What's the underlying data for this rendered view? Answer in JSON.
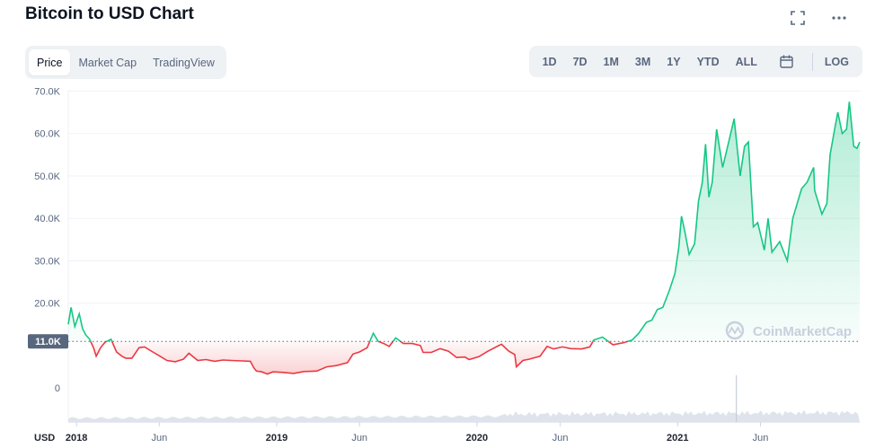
{
  "header": {
    "title": "Bitcoin to USD Chart"
  },
  "icons": {
    "fullscreen": "fullscreen-icon",
    "more": "more-horizontal-icon",
    "calendar": "calendar-icon",
    "logo": "coinmarketcap-logo"
  },
  "view_tabs": [
    {
      "label": "Price",
      "active": true
    },
    {
      "label": "Market Cap",
      "active": false
    },
    {
      "label": "TradingView",
      "active": false
    }
  ],
  "ranges": [
    "1D",
    "7D",
    "1M",
    "3M",
    "1Y",
    "YTD",
    "ALL"
  ],
  "log_label": "LOG",
  "currency_label": "USD",
  "watermark": "CoinMarketCap",
  "colors": {
    "up": "#16c784",
    "down": "#ea3943",
    "baseline_tag": "#58667e"
  },
  "chart_data": {
    "type": "area",
    "baseline": {
      "value": 11000,
      "label": "11.0K"
    },
    "ylim": [
      -8000,
      72000
    ],
    "yticks": [
      {
        "value": 70000,
        "label": "70.0K"
      },
      {
        "value": 60000,
        "label": "60.0K"
      },
      {
        "value": 50000,
        "label": "50.0K"
      },
      {
        "value": 40000,
        "label": "40.0K"
      },
      {
        "value": 30000,
        "label": "30.0K"
      },
      {
        "value": 20000,
        "label": "20.0K"
      },
      {
        "value": 0,
        "label": "0"
      }
    ],
    "xlim": [
      "2017-12-17",
      "2021-11-29"
    ],
    "xticks": [
      {
        "date": "2018-01-01",
        "label": "2018",
        "year": true
      },
      {
        "date": "2018-06-01",
        "label": "Jun",
        "year": false
      },
      {
        "date": "2019-01-01",
        "label": "2019",
        "year": true
      },
      {
        "date": "2019-06-01",
        "label": "Jun",
        "year": false
      },
      {
        "date": "2020-01-01",
        "label": "2020",
        "year": true
      },
      {
        "date": "2020-06-01",
        "label": "Jun",
        "year": false
      },
      {
        "date": "2021-01-01",
        "label": "2021",
        "year": true
      },
      {
        "date": "2021-06-01",
        "label": "Jun",
        "year": false
      }
    ],
    "series": [
      {
        "points": [
          [
            "2017-12-17",
            15000
          ],
          [
            "2017-12-22",
            19000
          ],
          [
            "2017-12-29",
            14500
          ],
          [
            "2018-01-06",
            17500
          ],
          [
            "2018-01-12",
            14000
          ],
          [
            "2018-01-18",
            12500
          ],
          [
            "2018-01-25",
            11500
          ],
          [
            "2018-02-01",
            9500
          ],
          [
            "2018-02-06",
            7500
          ],
          [
            "2018-02-14",
            9500
          ],
          [
            "2018-02-22",
            10800
          ],
          [
            "2018-03-05",
            11500
          ],
          [
            "2018-03-15",
            8500
          ],
          [
            "2018-03-25",
            7500
          ],
          [
            "2018-04-01",
            7000
          ],
          [
            "2018-04-12",
            7000
          ],
          [
            "2018-04-25",
            9500
          ],
          [
            "2018-05-05",
            9700
          ],
          [
            "2018-05-20",
            8500
          ],
          [
            "2018-06-01",
            7600
          ],
          [
            "2018-06-15",
            6500
          ],
          [
            "2018-06-30",
            6200
          ],
          [
            "2018-07-15",
            6800
          ],
          [
            "2018-07-25",
            8200
          ],
          [
            "2018-08-10",
            6500
          ],
          [
            "2018-08-25",
            6700
          ],
          [
            "2018-09-10",
            6300
          ],
          [
            "2018-09-25",
            6600
          ],
          [
            "2018-10-10",
            6500
          ],
          [
            "2018-10-30",
            6400
          ],
          [
            "2018-11-14",
            6300
          ],
          [
            "2018-11-20",
            4800
          ],
          [
            "2018-11-25",
            4000
          ],
          [
            "2018-12-05",
            3800
          ],
          [
            "2018-12-15",
            3300
          ],
          [
            "2018-12-25",
            3800
          ],
          [
            "2019-01-10",
            3700
          ],
          [
            "2019-02-01",
            3450
          ],
          [
            "2019-02-20",
            3900
          ],
          [
            "2019-03-15",
            4000
          ],
          [
            "2019-04-02",
            5000
          ],
          [
            "2019-04-20",
            5300
          ],
          [
            "2019-05-10",
            6000
          ],
          [
            "2019-05-20",
            8000
          ],
          [
            "2019-06-01",
            8500
          ],
          [
            "2019-06-15",
            9500
          ],
          [
            "2019-06-26",
            12900
          ],
          [
            "2019-07-05",
            11000
          ],
          [
            "2019-07-15",
            10500
          ],
          [
            "2019-07-25",
            9800
          ],
          [
            "2019-08-06",
            11800
          ],
          [
            "2019-08-20",
            10500
          ],
          [
            "2019-09-05",
            10500
          ],
          [
            "2019-09-20",
            10000
          ],
          [
            "2019-09-25",
            8400
          ],
          [
            "2019-10-10",
            8400
          ],
          [
            "2019-10-26",
            9300
          ],
          [
            "2019-11-10",
            8700
          ],
          [
            "2019-11-25",
            7200
          ],
          [
            "2019-12-10",
            7300
          ],
          [
            "2019-12-18",
            6700
          ],
          [
            "2020-01-05",
            7400
          ],
          [
            "2020-01-20",
            8600
          ],
          [
            "2020-02-10",
            10000
          ],
          [
            "2020-02-15",
            10300
          ],
          [
            "2020-02-28",
            8700
          ],
          [
            "2020-03-10",
            7900
          ],
          [
            "2020-03-13",
            5000
          ],
          [
            "2020-03-25",
            6500
          ],
          [
            "2020-04-05",
            6800
          ],
          [
            "2020-04-25",
            7500
          ],
          [
            "2020-05-08",
            9800
          ],
          [
            "2020-05-20",
            9200
          ],
          [
            "2020-06-05",
            9700
          ],
          [
            "2020-06-20",
            9300
          ],
          [
            "2020-07-10",
            9200
          ],
          [
            "2020-07-25",
            9700
          ],
          [
            "2020-08-01",
            11300
          ],
          [
            "2020-08-17",
            12000
          ],
          [
            "2020-09-05",
            10200
          ],
          [
            "2020-09-25",
            10700
          ],
          [
            "2020-10-10",
            11300
          ],
          [
            "2020-10-22",
            12900
          ],
          [
            "2020-11-05",
            15500
          ],
          [
            "2020-11-15",
            16000
          ],
          [
            "2020-11-25",
            18500
          ],
          [
            "2020-12-05",
            19000
          ],
          [
            "2020-12-17",
            23000
          ],
          [
            "2020-12-27",
            27000
          ],
          [
            "2021-01-03",
            33000
          ],
          [
            "2021-01-08",
            40500
          ],
          [
            "2021-01-14",
            37000
          ],
          [
            "2021-01-22",
            31500
          ],
          [
            "2021-02-01",
            34000
          ],
          [
            "2021-02-08",
            44000
          ],
          [
            "2021-02-15",
            48500
          ],
          [
            "2021-02-21",
            57500
          ],
          [
            "2021-02-27",
            45000
          ],
          [
            "2021-03-05",
            48500
          ],
          [
            "2021-03-13",
            61000
          ],
          [
            "2021-03-24",
            52000
          ],
          [
            "2021-04-05",
            58500
          ],
          [
            "2021-04-14",
            63500
          ],
          [
            "2021-04-25",
            50000
          ],
          [
            "2021-05-03",
            57000
          ],
          [
            "2021-05-10",
            58000
          ],
          [
            "2021-05-15",
            47000
          ],
          [
            "2021-05-19",
            38000
          ],
          [
            "2021-05-27",
            39000
          ],
          [
            "2021-06-08",
            32500
          ],
          [
            "2021-06-15",
            40000
          ],
          [
            "2021-06-22",
            32000
          ],
          [
            "2021-07-06",
            34500
          ],
          [
            "2021-07-20",
            30000
          ],
          [
            "2021-07-30",
            40000
          ],
          [
            "2021-08-15",
            47000
          ],
          [
            "2021-08-25",
            48500
          ],
          [
            "2021-09-06",
            52000
          ],
          [
            "2021-09-08",
            46500
          ],
          [
            "2021-09-21",
            41000
          ],
          [
            "2021-09-30",
            43500
          ],
          [
            "2021-10-06",
            55000
          ],
          [
            "2021-10-15",
            61500
          ],
          [
            "2021-10-20",
            65000
          ],
          [
            "2021-10-28",
            60000
          ],
          [
            "2021-11-05",
            61000
          ],
          [
            "2021-11-10",
            67500
          ],
          [
            "2021-11-18",
            57000
          ],
          [
            "2021-11-24",
            56500
          ],
          [
            "2021-11-29",
            58000
          ]
        ]
      }
    ]
  }
}
